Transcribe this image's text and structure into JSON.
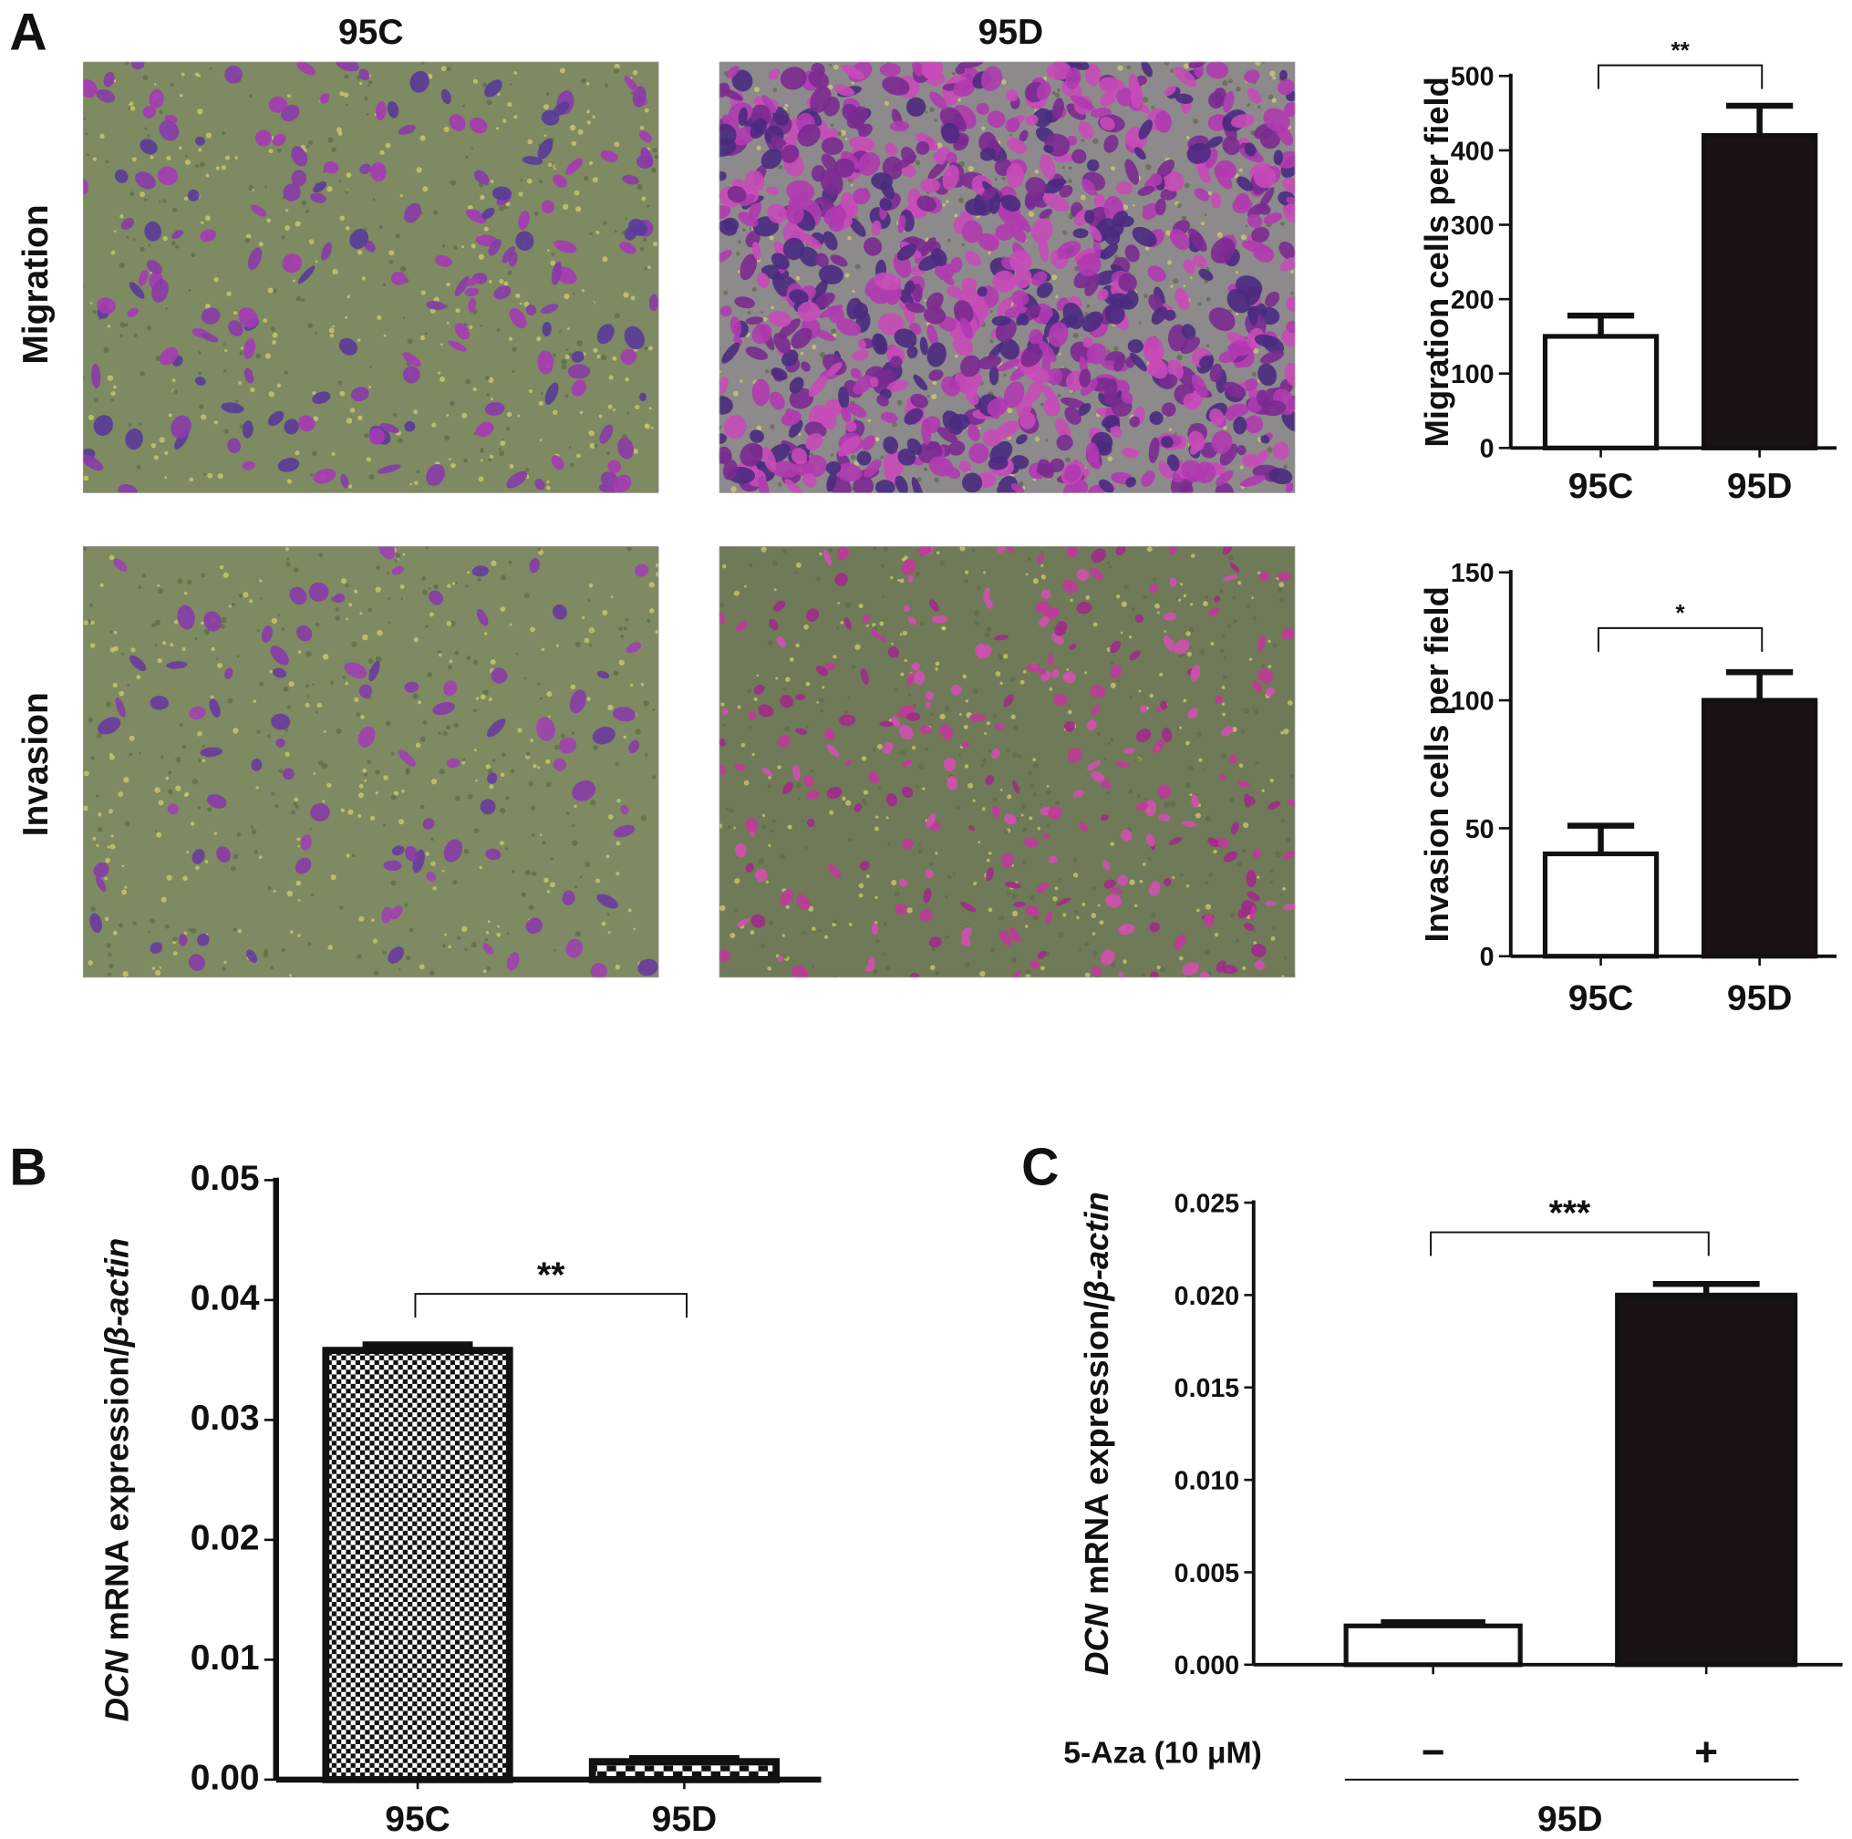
{
  "panels": {
    "a": "A",
    "b": "B",
    "c": "C"
  },
  "micrographs": {
    "columns": [
      "95C",
      "95D"
    ],
    "rows": [
      "Migration",
      "Invasion"
    ]
  },
  "colors": {
    "ink": "#111111",
    "bar_dark": "#1a1212",
    "bg_field": "#7d8a62",
    "stain": "#8a2aa0"
  },
  "chart_data": [
    {
      "id": "migration",
      "type": "bar",
      "title": "",
      "categories": [
        "95C",
        "95D"
      ],
      "values": [
        150,
        420
      ],
      "errors": [
        28,
        40
      ],
      "fills": [
        "white",
        "black"
      ],
      "ylabel": "Migration cells per field",
      "ylabel_italic": "",
      "xlabel": "",
      "ylim": [
        0,
        500
      ],
      "yticks": [
        "0",
        "100",
        "200",
        "300",
        "400",
        "500"
      ],
      "significance": "**",
      "grid": false
    },
    {
      "id": "invasion",
      "type": "bar",
      "title": "",
      "categories": [
        "95C",
        "95D"
      ],
      "values": [
        40,
        100
      ],
      "errors": [
        11,
        11
      ],
      "fills": [
        "white",
        "black"
      ],
      "ylabel": "Invasion cells per field",
      "ylabel_italic": "",
      "xlabel": "",
      "ylim": [
        0,
        150
      ],
      "yticks": [
        "0",
        "50",
        "100",
        "150"
      ],
      "significance": "*",
      "grid": false
    },
    {
      "id": "dcn_cells",
      "type": "bar",
      "title": "",
      "categories": [
        "95C",
        "95D"
      ],
      "values": [
        0.0358,
        0.0015
      ],
      "errors": [
        0.0005,
        0.0003
      ],
      "fills": [
        "checker",
        "checker"
      ],
      "ylabel_italic_prefix": "DCN",
      "ylabel": " mRNA expression/",
      "ylabel_italic": "β-actin",
      "xlabel": "",
      "ylim": [
        0,
        0.05
      ],
      "yticks": [
        "0.00",
        "0.01",
        "0.02",
        "0.03",
        "0.04",
        "0.05"
      ],
      "significance": "**",
      "grid": false
    },
    {
      "id": "dcn_aza",
      "type": "bar",
      "title": "",
      "categories": [
        "−",
        "+"
      ],
      "treatment_label": "5-Aza (10 μM)",
      "group_label": "95D",
      "values": [
        0.0021,
        0.02
      ],
      "errors": [
        0.0002,
        0.0006
      ],
      "fills": [
        "white",
        "black"
      ],
      "ylabel_italic_prefix": "DCN",
      "ylabel": " mRNA expression/",
      "ylabel_italic": "β-actin",
      "xlabel": "",
      "ylim": [
        0,
        0.025
      ],
      "yticks": [
        "0.000",
        "0.005",
        "0.010",
        "0.015",
        "0.020",
        "0.025"
      ],
      "significance": "***",
      "grid": false
    }
  ]
}
